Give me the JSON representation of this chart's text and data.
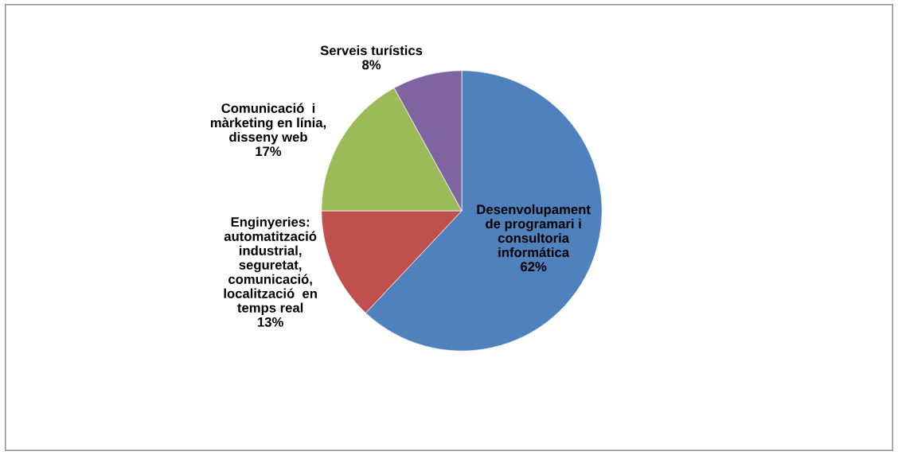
{
  "chart_data": {
    "type": "pie",
    "categories": [
      "Desenvolupament\nde programari i\nconsultoria\ninformática",
      "Enginyeries:\nautomatització\nindustrial,\nseguretat,\ncomunicació,\nlocalització  en\ntemps real",
      "Comunicació  i\nmàrketing en línia,\ndisseny web",
      "Serveis turístics"
    ],
    "values": [
      62,
      13,
      17,
      8
    ],
    "value_labels": [
      "62%",
      "13%",
      "17%",
      "8%"
    ],
    "colors": [
      "#4f81bd",
      "#c0504d",
      "#9bbb59",
      "#8064a2"
    ],
    "legend": false
  }
}
